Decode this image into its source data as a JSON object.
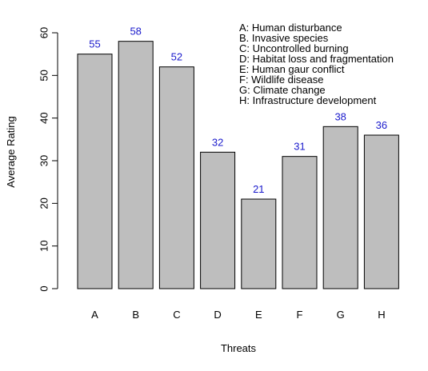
{
  "chart_data": {
    "type": "bar",
    "categories": [
      "A",
      "B",
      "C",
      "D",
      "E",
      "F",
      "G",
      "H"
    ],
    "values": [
      55,
      58,
      52,
      32,
      21,
      31,
      38,
      36
    ],
    "value_labels": [
      "55",
      "58",
      "52",
      "32",
      "21",
      "31",
      "38",
      "36"
    ],
    "xlabel": "Threats",
    "ylabel": "Average Rating",
    "ylim": [
      0,
      60
    ],
    "yticks": [
      0,
      10,
      20,
      30,
      40,
      50,
      60
    ],
    "ytick_labels": [
      "0",
      "10",
      "20",
      "30",
      "40",
      "50",
      "60"
    ],
    "grid": false,
    "legend_placement": "top-right",
    "legend": [
      "A: Human disturbance",
      "B. Invasive species",
      "C: Uncontrolled burning",
      "D: Habitat loss and fragmentation",
      "E: Human gaur conflict",
      "F: Wildlife disease",
      "G: Climate change",
      "H: Infrastructure development"
    ],
    "colors": {
      "bar_fill": "#bebebe",
      "bar_stroke": "#000000",
      "value_label": "#1a1acc"
    }
  }
}
